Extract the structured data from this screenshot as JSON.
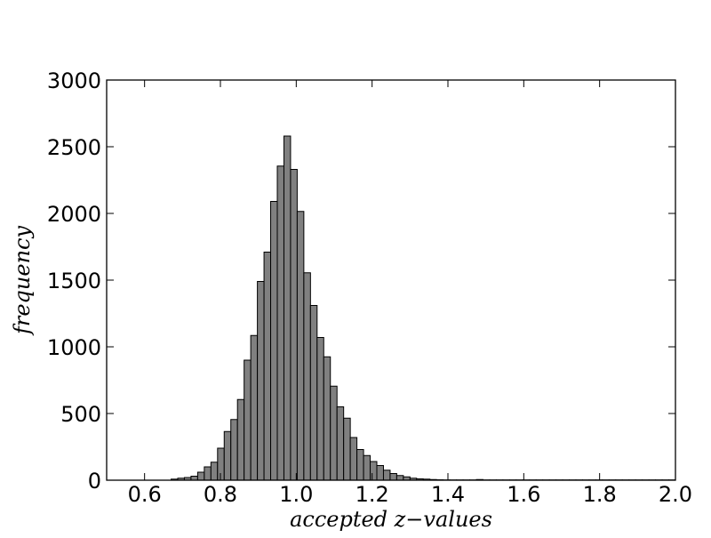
{
  "chart_data": {
    "type": "bar",
    "title": "",
    "xlabel": "accepted z−values",
    "ylabel": "frequency",
    "xlim": [
      0.5,
      2.0
    ],
    "ylim": [
      0,
      3000
    ],
    "x_ticks": [
      "0.6",
      "0.8",
      "1.0",
      "1.2",
      "1.4",
      "1.6",
      "1.8",
      "2.0"
    ],
    "y_ticks": [
      "0",
      "500",
      "1000",
      "1500",
      "2000",
      "2500",
      "3000"
    ],
    "grid": false,
    "bar_color": "#808080",
    "edge_color": "#000000",
    "bin_start": 0.67,
    "bin_width": 0.0175,
    "values": [
      8,
      15,
      20,
      30,
      60,
      100,
      135,
      240,
      365,
      455,
      605,
      900,
      1085,
      1490,
      1710,
      2090,
      2355,
      2580,
      2330,
      2015,
      1555,
      1310,
      1070,
      925,
      705,
      550,
      465,
      320,
      230,
      185,
      140,
      110,
      75,
      50,
      35,
      25,
      15,
      10,
      8,
      5,
      3,
      2,
      2,
      2,
      2,
      2,
      5,
      2,
      2,
      2,
      2,
      2,
      2,
      2,
      2,
      2,
      2,
      2,
      2,
      2,
      2,
      2,
      2,
      2,
      2,
      2,
      2,
      2,
      2,
      2,
      2,
      2,
      2,
      2,
      2,
      2,
      2
    ]
  }
}
